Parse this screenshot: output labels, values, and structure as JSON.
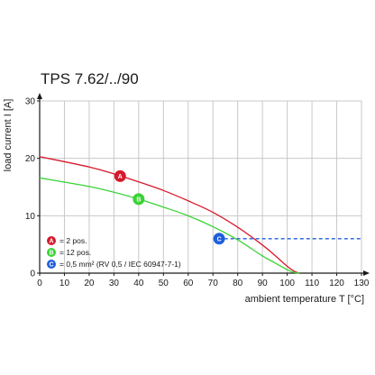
{
  "chart_data": {
    "type": "line",
    "title": "TPS 7.62/../90",
    "xlabel": "ambient temperature T [°C]",
    "ylabel": "load current I [A]",
    "xlim": [
      0,
      130
    ],
    "ylim": [
      0,
      30
    ],
    "xticks": [
      0,
      10,
      20,
      30,
      40,
      50,
      60,
      70,
      80,
      90,
      100,
      110,
      120,
      130
    ],
    "yticks": [
      0,
      10,
      20,
      30
    ],
    "grid": true,
    "legend_position": "bottom-left",
    "series": [
      {
        "name": "= 2 pos.",
        "marker": "A",
        "color": "#d7192b",
        "style": "solid",
        "x": [
          0,
          20,
          30,
          40,
          50,
          60,
          70,
          80,
          90,
          95,
          100,
          103,
          105
        ],
        "y": [
          20.3,
          18.5,
          17.3,
          15.9,
          14.4,
          12.6,
          10.6,
          8.0,
          4.9,
          3.1,
          1.2,
          0.3,
          0
        ]
      },
      {
        "name": "= 12 pos.",
        "marker": "B",
        "color": "#39d335",
        "style": "solid",
        "x": [
          0,
          20,
          30,
          40,
          50,
          60,
          70,
          80,
          90,
          95,
          100,
          103,
          105
        ],
        "y": [
          16.6,
          15.1,
          14.1,
          12.9,
          11.5,
          10.0,
          8.1,
          5.8,
          3.0,
          1.8,
          0.6,
          0.1,
          0
        ]
      },
      {
        "name": "= 0,5 mm² (RV 0,5 / IEC 60947-7-1)",
        "marker": "C",
        "color": "#1f5fdc",
        "style": "dashed",
        "x": [
          72,
          130
        ],
        "y": [
          6,
          6
        ]
      }
    ],
    "markers": [
      {
        "label": "A",
        "x": 32.5,
        "y": 16.9,
        "color": "#d7192b"
      },
      {
        "label": "B",
        "x": 40,
        "y": 12.9,
        "color": "#39d335"
      },
      {
        "label": "C",
        "x": 72.5,
        "y": 6,
        "color": "#1f5fdc"
      }
    ],
    "colors": {
      "grid": "#c8c8c8",
      "axis": "#1a1a1a"
    }
  }
}
